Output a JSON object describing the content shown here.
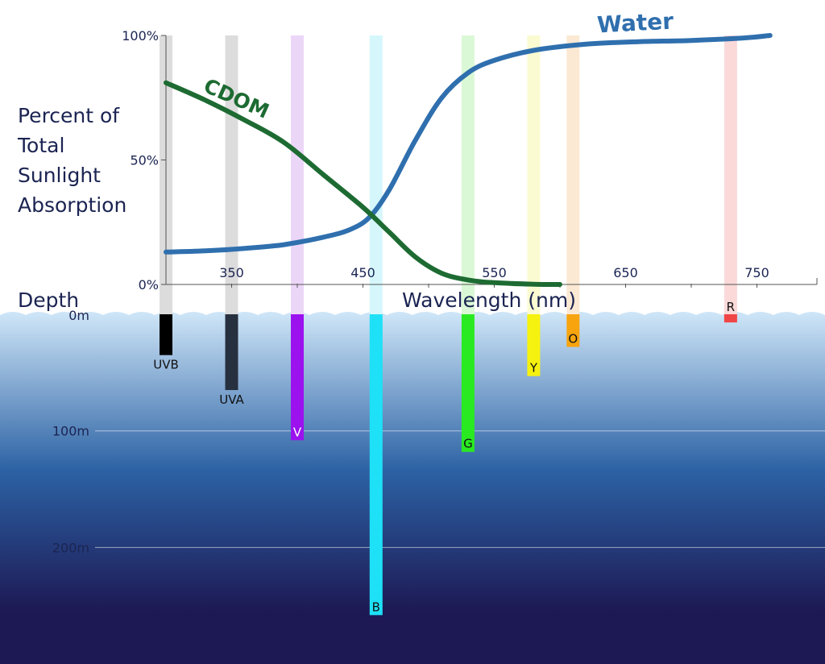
{
  "chart_data": {
    "type": "line",
    "ylabel_lines": [
      "Percent of",
      "Total",
      "Sunlight",
      "Absorption"
    ],
    "xlabel": "Wavelength (nm)",
    "depth_label": "Depth",
    "x_ticks": [
      {
        "value": 350,
        "label": "350"
      },
      {
        "value": 450,
        "label": "450"
      },
      {
        "value": 550,
        "label": "550"
      },
      {
        "value": 650,
        "label": "650"
      },
      {
        "value": 750,
        "label": "750"
      }
    ],
    "y_ticks": [
      {
        "value": 100,
        "label": "100%"
      },
      {
        "value": 50,
        "label": "50%"
      },
      {
        "value": 0,
        "label": "0%"
      }
    ],
    "xlim": [
      300,
      790
    ],
    "ylim": [
      0,
      100
    ],
    "depth_ticks": [
      {
        "value": 0,
        "label": "0m"
      },
      {
        "value": 100,
        "label": "100m"
      },
      {
        "value": 200,
        "label": "200m"
      }
    ],
    "series": [
      {
        "name": "Water",
        "color": "#2f6fae",
        "x": [
          300,
          330,
          360,
          390,
          420,
          440,
          455,
          470,
          490,
          510,
          530,
          550,
          580,
          620,
          660,
          700,
          740,
          760
        ],
        "y": [
          13,
          13.5,
          14.5,
          16,
          19,
          22,
          27,
          38,
          58,
          75,
          85,
          90,
          94,
          96.5,
          97.5,
          98,
          99,
          100
        ]
      },
      {
        "name": "CDOM",
        "color": "#1d6b32",
        "x": [
          300,
          330,
          360,
          390,
          420,
          450,
          470,
          490,
          510,
          530,
          550,
          580,
          600
        ],
        "y": [
          81,
          74,
          66,
          57,
          44,
          31,
          21,
          11,
          4.5,
          1.8,
          0.7,
          0.1,
          0
        ]
      }
    ],
    "bands": [
      {
        "label": "UVB",
        "wavelength": 300,
        "depth": 35,
        "color": "#000000",
        "label_color": "#111111",
        "label_pos": "below"
      },
      {
        "label": "UVA",
        "wavelength": 350,
        "depth": 65,
        "color": "#27303f",
        "label_color": "#111111",
        "label_pos": "below"
      },
      {
        "label": "V",
        "wavelength": 400,
        "depth": 108,
        "color": "#9b12ee",
        "label_color": "#ffffff",
        "label_pos": "inside"
      },
      {
        "label": "B",
        "wavelength": 460,
        "depth": 258,
        "color": "#1ee0f6",
        "label_color": "#111111",
        "label_pos": "inside"
      },
      {
        "label": "G",
        "wavelength": 530,
        "depth": 118,
        "color": "#29ea21",
        "label_color": "#111111",
        "label_pos": "inside"
      },
      {
        "label": "Y",
        "wavelength": 580,
        "depth": 53,
        "color": "#f6f20f",
        "label_color": "#111111",
        "label_pos": "inside"
      },
      {
        "label": "O",
        "wavelength": 610,
        "depth": 28,
        "color": "#f7a40f",
        "label_color": "#111111",
        "label_pos": "inside"
      },
      {
        "label": "R",
        "wavelength": 730,
        "depth": 7,
        "color": "#f04545",
        "label_color": "#111111",
        "label_pos": "above"
      }
    ],
    "band_stripe_colors": {
      "UVB": "#dcdcdc",
      "UVA": "#dcdcdc",
      "V": "#ecd6f8",
      "B": "#d5f7fb",
      "G": "#daf8d5",
      "Y": "#fbfbd2",
      "O": "#fbe9d4",
      "R": "#fbd9d9"
    },
    "ocean_colors": {
      "surface": "#cfe6f8",
      "mid": "#2c62a4",
      "deep": "#1d1954"
    }
  }
}
